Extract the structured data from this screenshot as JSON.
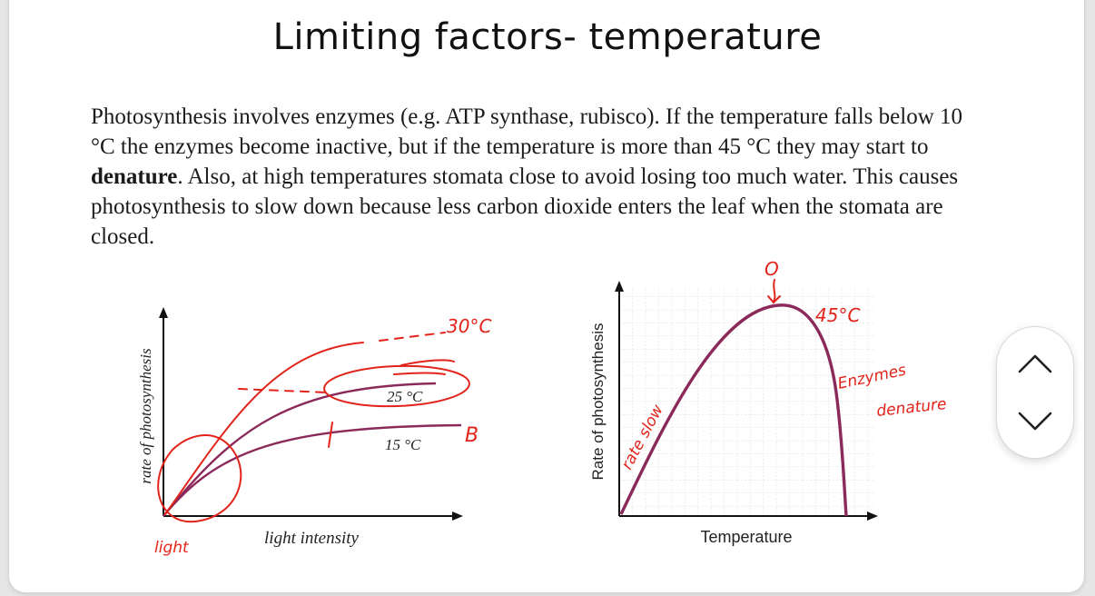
{
  "slide": {
    "title": "Limiting factors- temperature",
    "paragraph": {
      "before_bold": "Photosynthesis involves enzymes (e.g. ATP synthase, rubisco).  If the temperature falls below 10 °C the enzymes become inactive, but if the temperature is more than 45 °C they may start to ",
      "bold": "denature",
      "after_bold": ".  Also, at high temperatures stomata close to avoid losing too much water.  This causes photosynthesis to slow down because less carbon dioxide enters the leaf when the stomata are closed."
    }
  },
  "left_graph": {
    "ylabel": "rate of photosynthesis",
    "xlabel": "light intensity",
    "curve_label_upper": "25 °C",
    "curve_label_lower": "15 °C"
  },
  "right_graph": {
    "ylabel": "Rate of photosynthesis",
    "xlabel": "Temperature"
  },
  "annotations": {
    "ink_color": "#e2231a",
    "curve_color": "#8b2a5a",
    "left_top": "30°C",
    "left_B": "B",
    "left_light": "light",
    "right_O": "O",
    "right_45": "45°C",
    "right_rate_slow": "rate slow",
    "right_enzymes_1": "Enzymes",
    "right_enzymes_2": "denature"
  },
  "controls": {
    "scroll_up_icon": "chevron-up-icon",
    "scroll_down_icon": "chevron-down-icon"
  }
}
